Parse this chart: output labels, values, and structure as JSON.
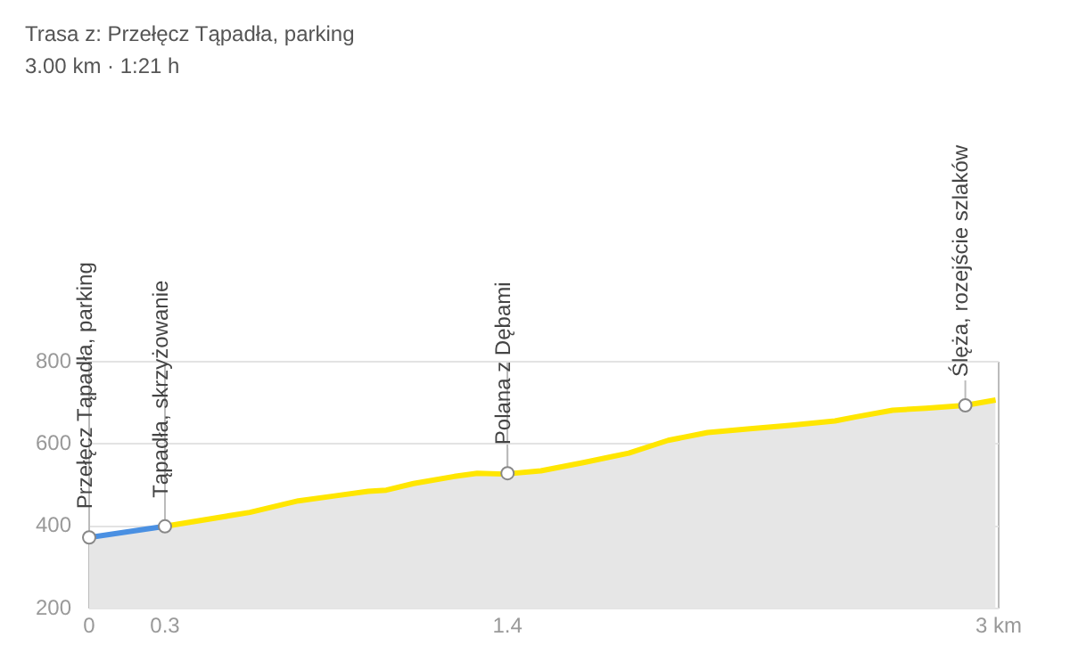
{
  "chart_data": {
    "type": "area",
    "title": "Trasa z: Przełęcz Tąpadła, parking",
    "subtitle": "3.00 km · 1:21 h",
    "series": [
      {
        "color": "#4a90e2",
        "x": [
          0,
          0.25
        ],
        "values": [
          373,
          400
        ]
      },
      {
        "color": "#ffe600",
        "x": [
          0.25,
          0.53,
          0.69,
          0.81,
          0.92,
          0.98,
          1.07,
          1.21,
          1.28,
          1.37,
          1.49,
          1.63,
          1.78,
          1.91,
          2.04,
          2.18,
          2.31,
          2.46,
          2.53,
          2.65,
          2.76,
          2.89,
          2.99
        ],
        "values": [
          400,
          434,
          462,
          474,
          485,
          488,
          504,
          522,
          529,
          527,
          535,
          555,
          578,
          609,
          628,
          637,
          645,
          656,
          666,
          682,
          687,
          694,
          707
        ]
      }
    ],
    "xlim": [
      0,
      3
    ],
    "xticks": [
      0,
      {
        "value": 0.25,
        "label": "0.3"
      },
      {
        "value": 1.38,
        "label": "1.4"
      },
      {
        "value": 3,
        "label": "3 km"
      }
    ],
    "ylim": [
      200,
      800
    ],
    "yticks": [
      200,
      400,
      600,
      800
    ],
    "grid": true,
    "legend": false,
    "line_style": "solid",
    "annotations": [
      {
        "text": "Przełęcz Tąpadła, parking",
        "x": 0,
        "y": 373
      },
      {
        "text": "Tąpadła, skrzyżowanie",
        "x": 0.25,
        "y": 400
      },
      {
        "text": "Polana z Dębami",
        "x": 1.38,
        "y": 529
      },
      {
        "text": "Ślęża, rozejście szlaków",
        "x": 2.89,
        "y": 694
      }
    ]
  }
}
